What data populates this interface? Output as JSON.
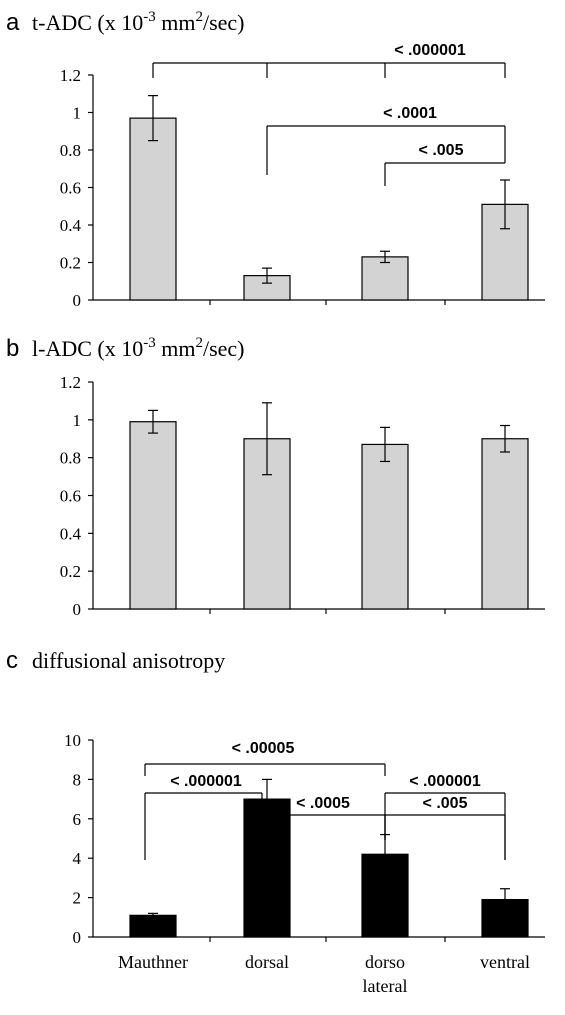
{
  "chart_data": [
    {
      "panel": "a",
      "type": "bar",
      "title": "t-ADC (x 10",
      "title_exp": "-3",
      "title_mid": " mm",
      "title_exp2": "2",
      "title_end": "/sec)",
      "categories": [
        "Mauthner",
        "dorsal",
        "dorso lateral",
        "ventral"
      ],
      "values": [
        0.97,
        0.13,
        0.23,
        0.51
      ],
      "errors": [
        0.12,
        0.04,
        0.03,
        0.13
      ],
      "ylim": [
        0,
        1.2
      ],
      "yticks": [
        "0",
        "0.2",
        "0.4",
        "0.6",
        "0.8",
        "1",
        "1.2"
      ],
      "bar_color": "#d3d3d3",
      "grid": false,
      "significance": [
        {
          "label": "< .000001",
          "from": 0,
          "to": 3,
          "drops": [
            0,
            1,
            2,
            3
          ]
        },
        {
          "label": "< .0001",
          "from": 1,
          "to": 3,
          "drops": [
            1,
            3
          ]
        },
        {
          "label": "< .005",
          "from": 2,
          "to": 3,
          "drops": [
            2,
            3
          ]
        }
      ]
    },
    {
      "panel": "b",
      "type": "bar",
      "title": "l-ADC (x 10",
      "title_exp": "-3",
      "title_mid": " mm",
      "title_exp2": "2",
      "title_end": "/sec)",
      "categories": [
        "Mauthner",
        "dorsal",
        "dorso lateral",
        "ventral"
      ],
      "values": [
        0.99,
        0.9,
        0.87,
        0.9
      ],
      "errors": [
        0.06,
        0.19,
        0.09,
        0.07
      ],
      "ylim": [
        0,
        1.2
      ],
      "yticks": [
        "0",
        "0.2",
        "0.4",
        "0.6",
        "0.8",
        "1",
        "1.2"
      ],
      "bar_color": "#d3d3d3",
      "grid": false,
      "significance": []
    },
    {
      "panel": "c",
      "type": "bar",
      "title": "diffusional anisotropy",
      "categories": [
        "Mauthner",
        "dorsal",
        "dorso lateral",
        "ventral"
      ],
      "category_lines": [
        [
          "Mauthner"
        ],
        [
          "dorsal"
        ],
        [
          "dorso",
          "lateral"
        ],
        [
          "ventral"
        ]
      ],
      "values": [
        1.1,
        7.0,
        4.2,
        1.9
      ],
      "errors": [
        0.1,
        1.0,
        1.0,
        0.55
      ],
      "ylim": [
        0,
        10
      ],
      "yticks": [
        "0",
        "2",
        "4",
        "6",
        "8",
        "10"
      ],
      "bar_color": "#000000",
      "grid": false,
      "significance": [
        {
          "label": "< .00005",
          "from": 0,
          "to": 2,
          "drops": [
            0,
            2
          ]
        },
        {
          "label": "< .000001",
          "from": 0,
          "to": 1,
          "drops": [
            0,
            1
          ]
        },
        {
          "label": "< .000001",
          "from": 1,
          "to": 3,
          "drops": [
            1,
            3
          ]
        },
        {
          "label": "< .0005",
          "from": 1,
          "to": 2,
          "drops": [
            1,
            2
          ]
        },
        {
          "label": "< .005",
          "from": 2,
          "to": 3,
          "drops": [
            2,
            3
          ]
        }
      ]
    }
  ]
}
